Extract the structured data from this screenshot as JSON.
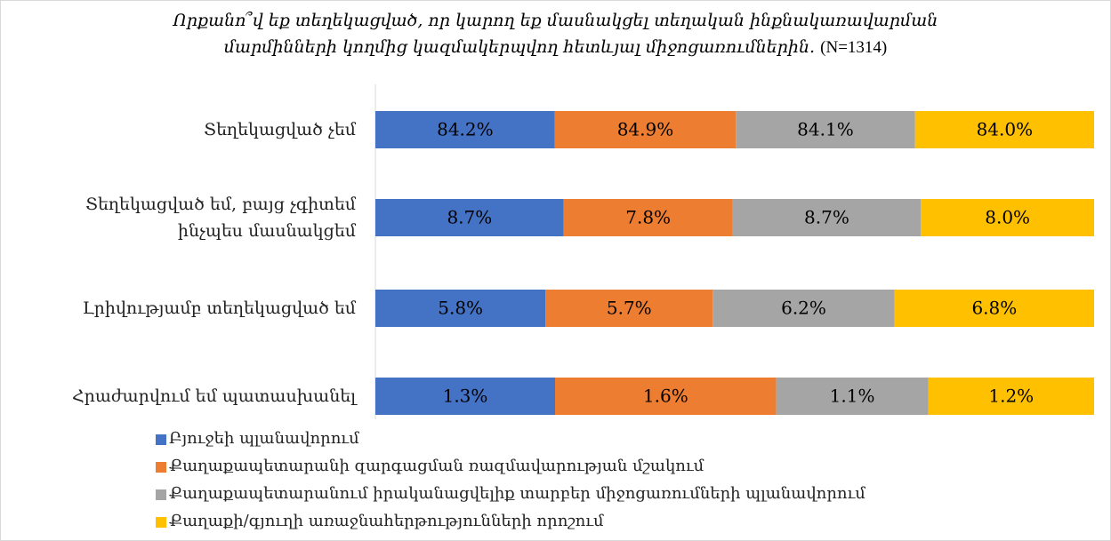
{
  "chart_data": {
    "type": "bar_stacked_100_horizontal",
    "title_lines": [
      "Որքանո՞վ եք տեղեկացված, որ կարող եք մասնակցել տեղական ինքնակառավարման",
      "մարմինների կողմից կազմակերպվող հետևյալ միջոցառումներին."
    ],
    "subtitle": "(N=1314)",
    "categories": [
      "Տեղեկացված չեմ",
      "Տեղեկացված եմ, բայց չգիտեմ\nինչպես մասնակցեմ",
      "Լրիվությամբ տեղեկացված եմ",
      "Հրաժարվում եմ պատասխանել"
    ],
    "series": [
      {
        "name": "Բյուջեի պլանավորում",
        "color": "#4472c4",
        "values": [
          84.2,
          8.7,
          5.8,
          1.3
        ],
        "value_labels": [
          "84.2%",
          "8.7%",
          "5.8%",
          "1.3%"
        ]
      },
      {
        "name": "Քաղաքապետարանի զարգացման ռազմավարության մշակում",
        "color": "#ed7d31",
        "values": [
          84.9,
          7.8,
          5.7,
          1.6
        ],
        "value_labels": [
          "84.9%",
          "7.8%",
          "5.7%",
          "1.6%"
        ]
      },
      {
        "name": "Քաղաքապետարանում իրականացվելիք տարբեր միջոցառումների պլանավորում",
        "color": "#a5a5a5",
        "values": [
          84.1,
          8.7,
          6.2,
          1.1
        ],
        "value_labels": [
          "84.1%",
          "8.7%",
          "6.2%",
          "1.1%"
        ]
      },
      {
        "name": "Քաղաքի/գյուղի առաջնահերթությունների որոշում",
        "color": "#ffc000",
        "values": [
          84.0,
          8.0,
          6.8,
          1.2
        ],
        "value_labels": [
          "84.0%",
          "8.0%",
          "6.8%",
          "1.2%"
        ]
      }
    ],
    "legend": "bottom-left"
  }
}
